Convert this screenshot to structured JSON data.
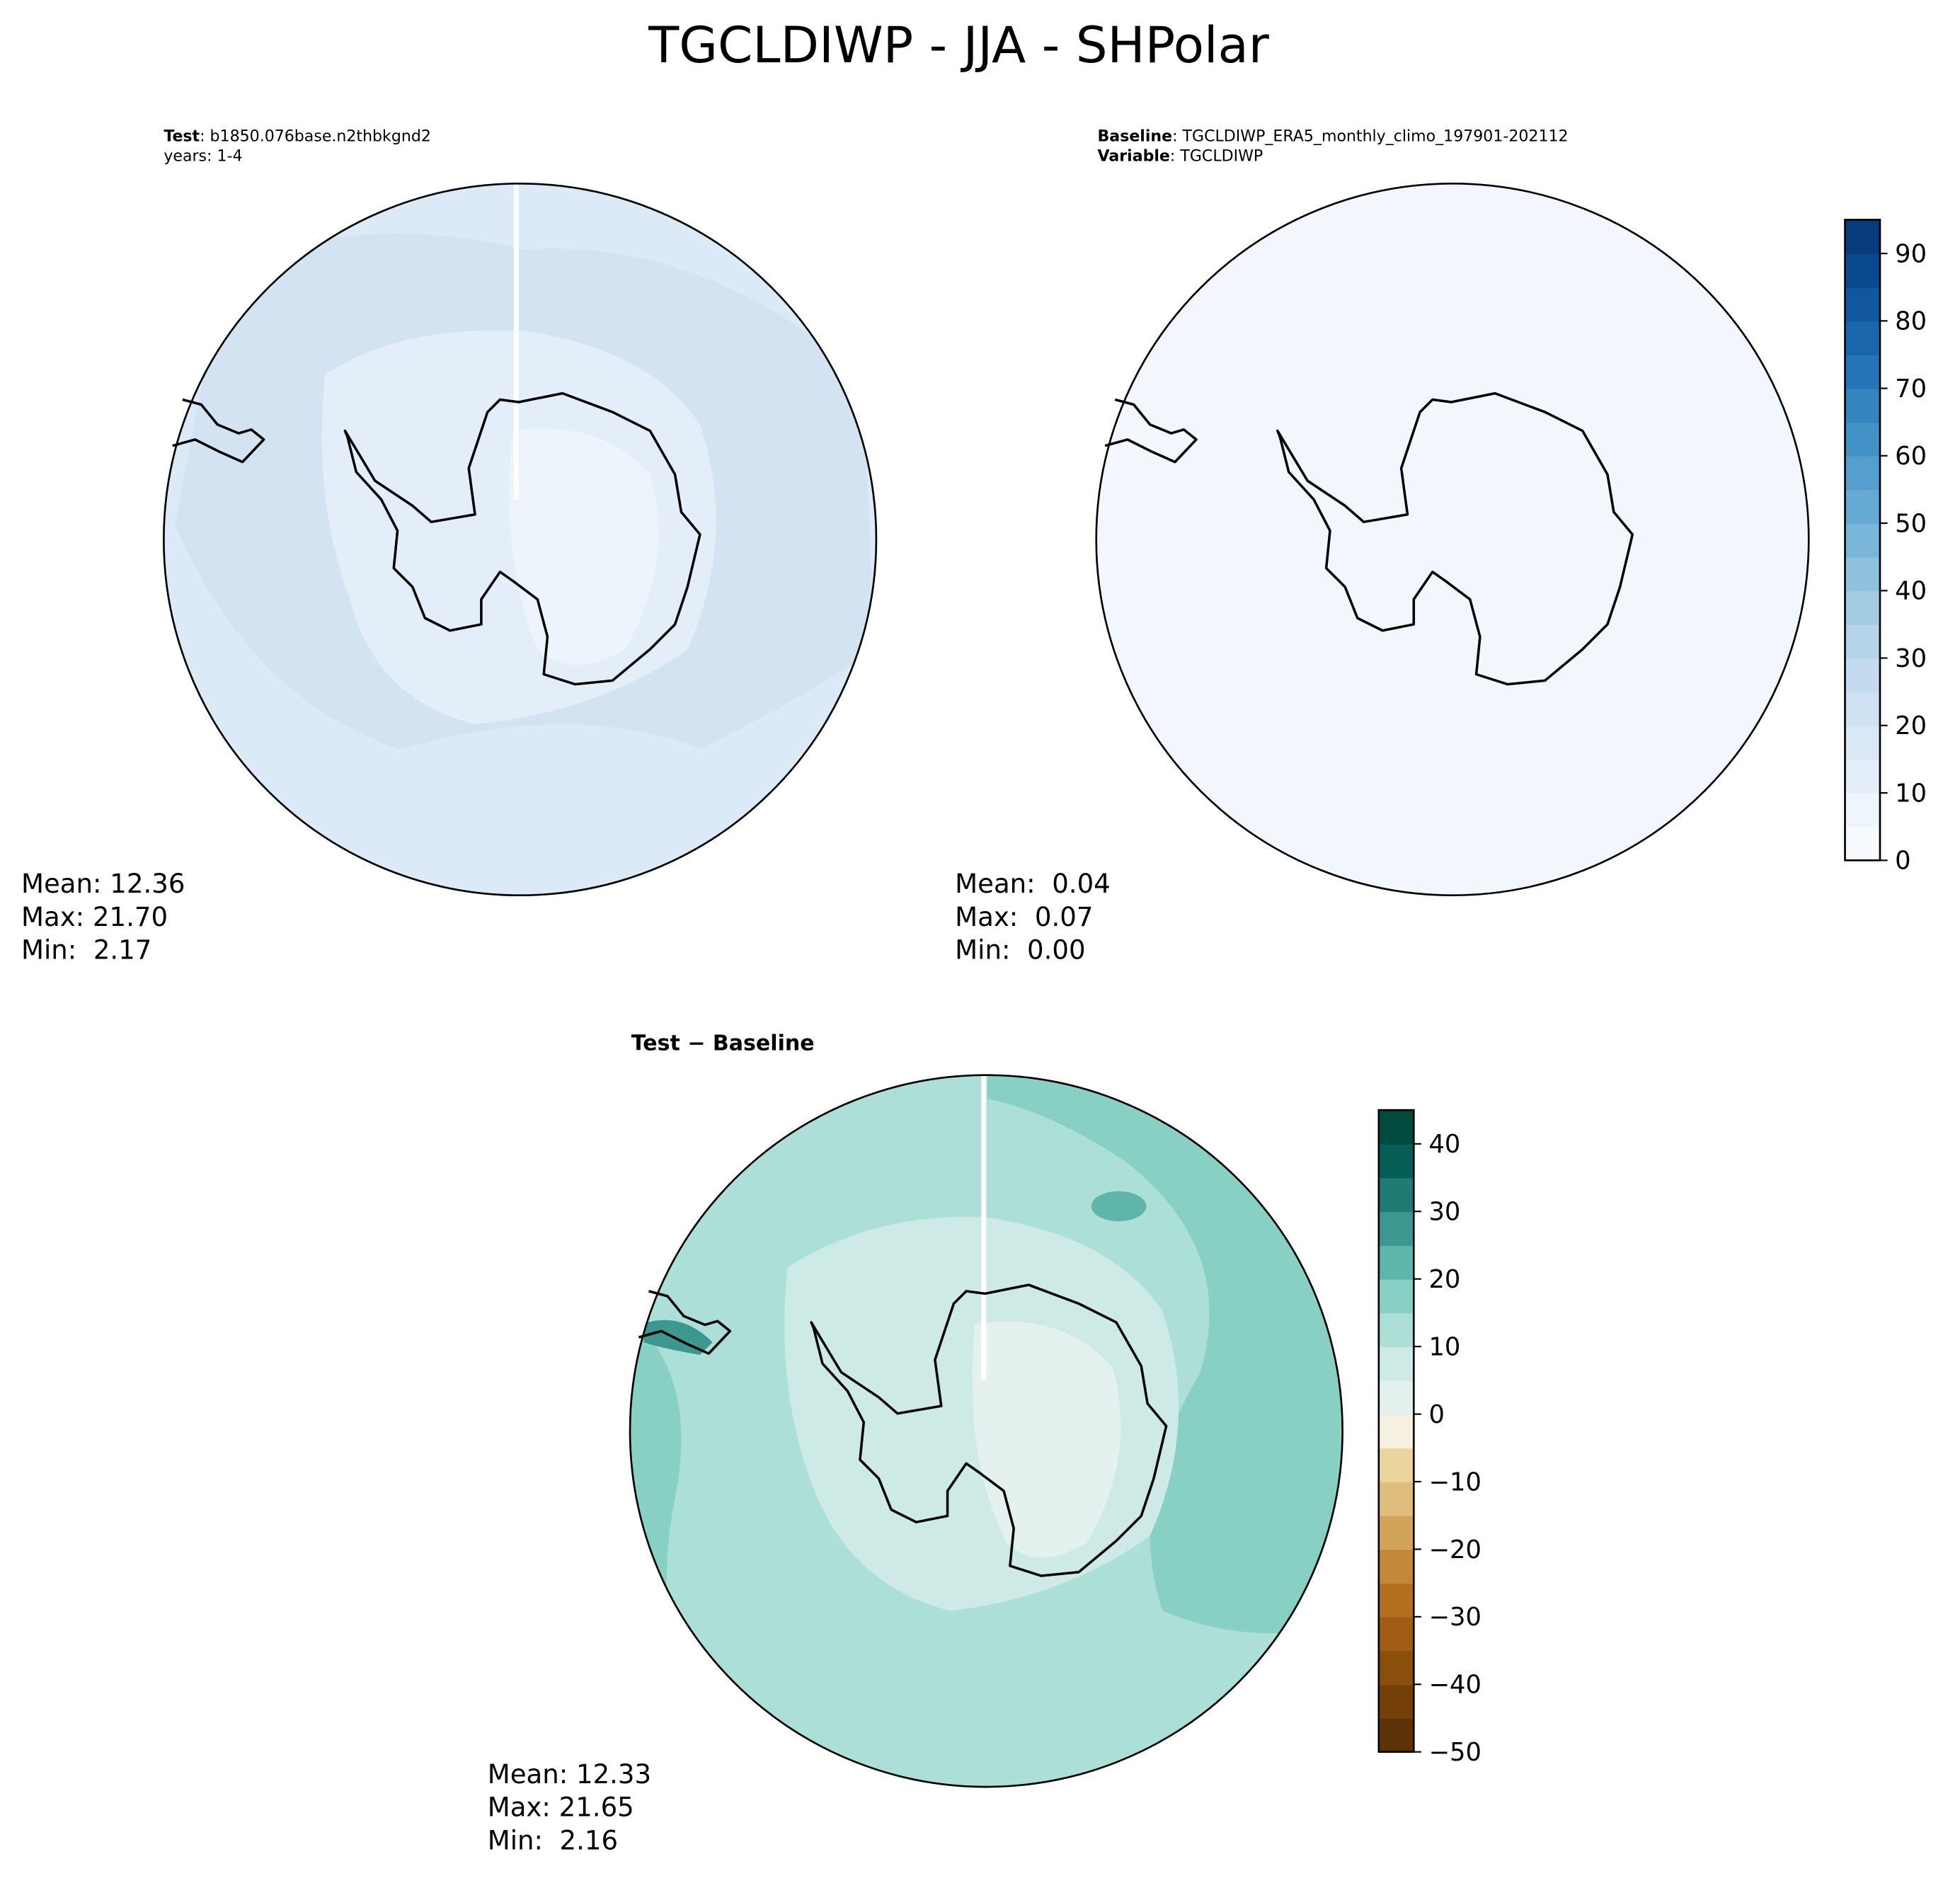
{
  "title": "TGCLDIWP - JJA - SHPolar",
  "panels": [
    {
      "header": [
        [
          {
            "text": "Test",
            "bold": true
          },
          {
            "text": ": b1850.076base.n2thbkgnd2"
          }
        ],
        [
          {
            "text": "years: 1-4"
          }
        ]
      ],
      "stats": [
        "Mean: 12.36",
        "Max: 21.70",
        "Min:  2.17"
      ]
    },
    {
      "header": [
        [
          {
            "text": "Baseline",
            "bold": true
          },
          {
            "text": ": TGCLDIWP_ERA5_monthly_climo_197901-202112"
          }
        ],
        [
          {
            "text": "Variable",
            "bold": true
          },
          {
            "text": ": TGCLDIWP"
          }
        ]
      ],
      "stats": [
        "Mean:  0.04",
        "Max:  0.07",
        "Min:  0.00"
      ]
    },
    {
      "header": [
        [
          {
            "text": "Test − Baseline",
            "bold": true
          }
        ]
      ],
      "stats": [
        "Mean: 12.33",
        "Max: 21.65",
        "Min:  2.16"
      ]
    }
  ],
  "colorbars": [
    {
      "ylim": [
        0,
        95
      ],
      "yticks": [
        0,
        10,
        20,
        30,
        40,
        50,
        60,
        70,
        80,
        90
      ],
      "colors": [
        "#f7fbff",
        "#eef5fc",
        "#e3eef9",
        "#d9e8f5",
        "#cfe1f2",
        "#c4daee",
        "#b5d4e9",
        "#a3cce3",
        "#8fc2de",
        "#7ab6d9",
        "#66aad4",
        "#549fcd",
        "#4292c6",
        "#3484bf",
        "#2474b7",
        "#1966ad",
        "#0f58a0",
        "#084990",
        "#083b7c"
      ]
    },
    {
      "ylim": [
        -50,
        45
      ],
      "yticks": [
        {
          "value": -50,
          "label": "−50"
        },
        {
          "value": -40,
          "label": "−40"
        },
        {
          "value": -30,
          "label": "−30"
        },
        {
          "value": -20,
          "label": "−20"
        },
        {
          "value": -10,
          "label": "−10"
        },
        0,
        10,
        20,
        30,
        40
      ],
      "colors": [
        "#5c3206",
        "#744008",
        "#8a4f0b",
        "#9f5e13",
        "#b36f1e",
        "#c4883a",
        "#d2a35a",
        "#dfbd7c",
        "#ebd49e",
        "#f5f0e2",
        "#e5f1ef",
        "#cdeae6",
        "#addfd7",
        "#88d0c4",
        "#5fb5aa",
        "#3b978f",
        "#1e7a72",
        "#075e55",
        "#014a3e"
      ]
    }
  ]
}
